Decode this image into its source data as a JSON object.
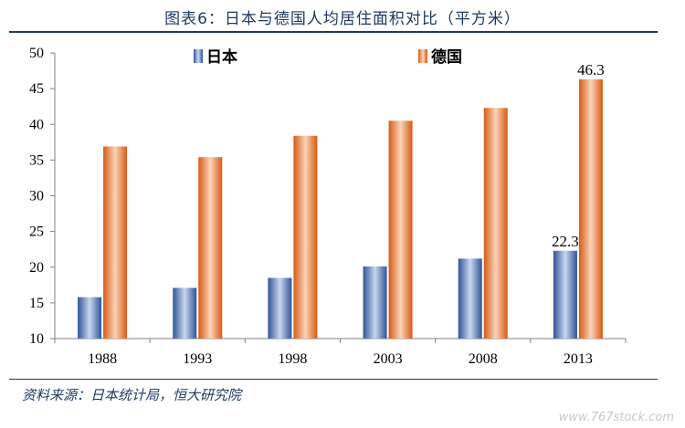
{
  "title": "图表6：日本与德国人均居住面积对比（平方米）",
  "source": "资料来源：日本统计局，恒大研究院",
  "watermark": "www.767stock.com",
  "colors": {
    "japan": "#4472c4",
    "germany": "#ed7d31"
  },
  "chart_data": {
    "type": "bar",
    "categories": [
      "1988",
      "1993",
      "1998",
      "2003",
      "2008",
      "2013"
    ],
    "series": [
      {
        "name": "日本",
        "values": [
          15.8,
          17.1,
          18.5,
          20.1,
          21.2,
          22.3
        ]
      },
      {
        "name": "德国",
        "values": [
          36.9,
          35.4,
          38.4,
          40.5,
          42.3,
          46.3
        ]
      }
    ],
    "data_labels": [
      {
        "series": 0,
        "index": 5,
        "text": "22.3"
      },
      {
        "series": 1,
        "index": 5,
        "text": "46.3"
      }
    ],
    "yticks": [
      "10",
      "15",
      "20",
      "25",
      "30",
      "35",
      "40",
      "45",
      "50"
    ],
    "ylim": [
      10,
      50
    ],
    "grid": false,
    "legend_position": "top"
  }
}
